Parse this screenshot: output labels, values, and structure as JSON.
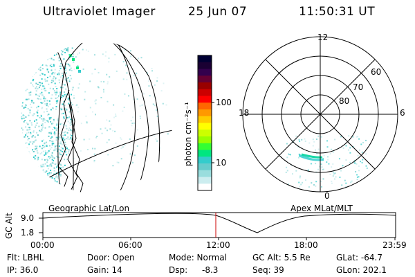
{
  "header": {
    "instrument": "Ultraviolet Imager",
    "date": "25 Jun 07",
    "time": "11:50:31 UT"
  },
  "colorbar": {
    "label": "photon cm⁻²s⁻¹",
    "ticks": [
      "100",
      "10"
    ],
    "colors": [
      "#000033",
      "#1a0033",
      "#33004d",
      "#660033",
      "#990000",
      "#cc0000",
      "#ff0000",
      "#ff6600",
      "#ff9900",
      "#ffcc00",
      "#ffff00",
      "#ccff00",
      "#99ff00",
      "#33ff33",
      "#00e680",
      "#33cccc",
      "#66cccc",
      "#99dddd",
      "#ccedef",
      "#ffffff"
    ]
  },
  "polar": {
    "lat_labels": [
      "80",
      "70",
      "60"
    ],
    "mlt_labels": {
      "top": "12",
      "left": "18",
      "right": "6",
      "bottom": "0"
    }
  },
  "timeline": {
    "y_axis_title": "GC Alt",
    "y_ticks": [
      "9.0",
      "1.8"
    ],
    "left_caption": "Geographic Lat/Lon",
    "right_caption": "Apex MLat/MLT",
    "x_ticks": [
      "00:00",
      "06:00",
      "12:00",
      "18:00",
      "23:59"
    ],
    "marker_color": "#cc0000"
  },
  "info": {
    "filter": "Flt: LBHL",
    "ip": "IP: 36.0",
    "door": "Door: Open",
    "gain": "Gain: 14",
    "mode": "Mode: Normal",
    "dsp_label": "Dsp:",
    "dsp_value": "-8.3",
    "gc_alt": "GC Alt: 5.5 Re",
    "seq": "Seq: 39",
    "glat": "GLat: -64.7",
    "glon": "GLon: 202.1"
  }
}
